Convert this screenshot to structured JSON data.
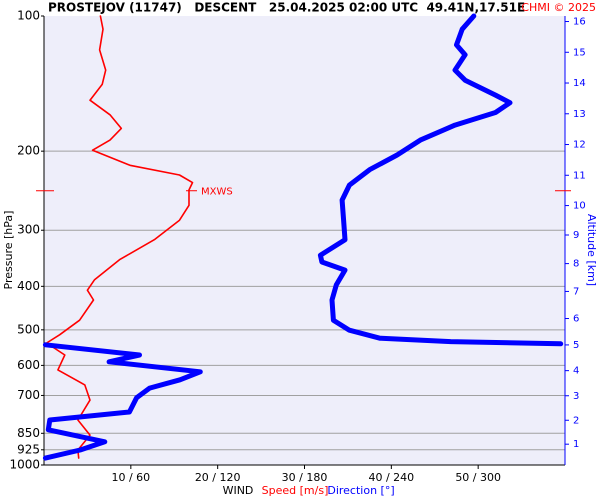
{
  "chart_data": {
    "type": "line",
    "title": "PROSTEJOV (11747)   DESCENT   25.04.2025 02:00 UTC  49.41N,17.51E",
    "credit": "CHMI © 2025",
    "ylabel": "Pressure [hPa]",
    "y2label": "Altitude [km]",
    "xlabel": "WIND",
    "log_y": true,
    "ylim": [
      100,
      1000
    ],
    "yticks": [
      100,
      200,
      300,
      400,
      500,
      600,
      700,
      850,
      925,
      1000
    ],
    "grid": true,
    "xlim": [
      0,
      60
    ],
    "x2lim": [
      0,
      360
    ],
    "xticks": [
      {
        "value": 10,
        "label": "10 / 60"
      },
      {
        "value": 20,
        "label": "20 / 120"
      },
      {
        "value": 30,
        "label": "30 / 180"
      },
      {
        "value": 40,
        "label": "40 / 240"
      },
      {
        "value": 50,
        "label": "50 / 300"
      }
    ],
    "y2ticks": [
      1,
      2,
      3,
      4,
      5,
      6,
      7,
      8,
      9,
      10,
      11,
      12,
      13,
      14,
      15,
      16
    ],
    "series": [
      {
        "name": "Speed [m/s]",
        "color": "#ff0000",
        "pressure": [
          100,
          107,
          119,
          132,
          142,
          154,
          166,
          178,
          189,
          199,
          215,
          226,
          235,
          244,
          264,
          285,
          315,
          349,
          387,
          408,
          429,
          476,
          513,
          535,
          569,
          614,
          663,
          717,
          794,
          858,
          926,
          965
        ],
        "values": [
          6.5,
          6.8,
          6.4,
          7.1,
          6.7,
          5.3,
          7.6,
          8.9,
          7.6,
          5.6,
          9.9,
          15.6,
          17.1,
          16.7,
          16.7,
          15.6,
          12.7,
          8.7,
          5.8,
          5.0,
          5.7,
          4.1,
          1.8,
          0.3,
          2.4,
          1.6,
          4.7,
          5.3,
          3.9,
          5.3,
          3.9,
          4.0
        ]
      },
      {
        "name": "Direction [°]",
        "color": "#0000ff",
        "axis": "x2",
        "pressure": [
          100,
          107,
          116,
          122,
          132,
          139,
          150,
          156,
          164,
          175,
          189,
          204,
          220,
          238,
          257,
          285,
          315,
          341,
          353,
          368,
          397,
          429,
          476,
          501,
          522,
          531,
          537,
          539,
          540,
          569,
          589,
          620,
          646,
          674,
          708,
          762,
          794,
          835,
          888,
          926,
          965
        ],
        "values": [
          297,
          289,
          285,
          291,
          284,
          291,
          312,
          322,
          312,
          284,
          260,
          244,
          225,
          211,
          206,
          207,
          208,
          191,
          192,
          208,
          202,
          199,
          200,
          211,
          232,
          281,
          357,
          null,
          1,
          66,
          45,
          108,
          94,
          73,
          64,
          59,
          4,
          3,
          42,
          25,
          1
        ]
      }
    ],
    "annotations": [
      {
        "text": "MXWS",
        "pressure": 245
      }
    ]
  }
}
